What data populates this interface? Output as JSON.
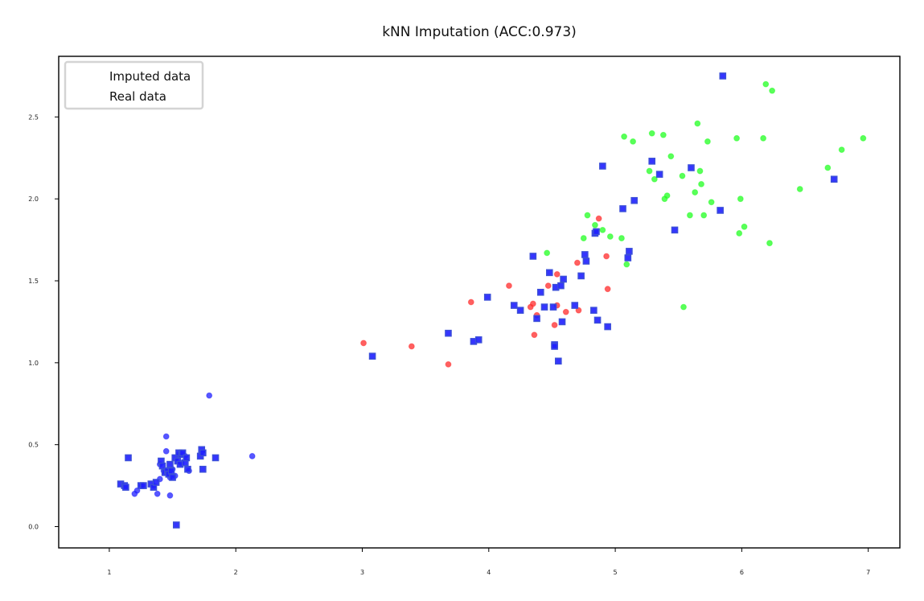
{
  "chart_data": {
    "type": "scatter",
    "title": "kNN Imputation (ACC:0.973)",
    "xlabel": "",
    "ylabel": "",
    "xlim": [
      0.6,
      7.25
    ],
    "ylim": [
      -0.13,
      2.87
    ],
    "xticks": [
      1,
      2,
      3,
      4,
      5,
      6,
      7
    ],
    "yticks": [
      0.0,
      0.5,
      1.0,
      1.5,
      2.0,
      2.5
    ],
    "xtick_labels": [
      "1",
      "2",
      "3",
      "4",
      "5",
      "6",
      "7"
    ],
    "ytick_labels": [
      "0.0",
      "0.5",
      "1.0",
      "1.5",
      "2.0",
      "2.5"
    ],
    "grid": false,
    "legend": {
      "placement": "top-left",
      "entries": [
        "Imputed data",
        "Real data"
      ]
    },
    "colors": {
      "class_0": "#1f1fff",
      "class_1": "#ff2b2b",
      "class_2": "#22ff22",
      "imputed_marker": "#3b4fd8"
    },
    "series": [
      {
        "name": "Real data",
        "marker": "circle",
        "points": [
          {
            "x": 1.45,
            "y": 0.55,
            "c": 0
          },
          {
            "x": 1.79,
            "y": 0.8,
            "c": 0
          },
          {
            "x": 2.13,
            "y": 0.43,
            "c": 0
          },
          {
            "x": 1.45,
            "y": 0.46,
            "c": 0
          },
          {
            "x": 1.4,
            "y": 0.38,
            "c": 0
          },
          {
            "x": 1.5,
            "y": 0.35,
            "c": 0
          },
          {
            "x": 1.55,
            "y": 0.44,
            "c": 0
          },
          {
            "x": 1.6,
            "y": 0.43,
            "c": 0
          },
          {
            "x": 1.63,
            "y": 0.34,
            "c": 0
          },
          {
            "x": 1.48,
            "y": 0.3,
            "c": 0
          },
          {
            "x": 1.52,
            "y": 0.31,
            "c": 0
          },
          {
            "x": 1.38,
            "y": 0.2,
            "c": 0
          },
          {
            "x": 1.48,
            "y": 0.19,
            "c": 0
          },
          {
            "x": 1.2,
            "y": 0.2,
            "c": 0
          },
          {
            "x": 1.22,
            "y": 0.22,
            "c": 0
          },
          {
            "x": 1.26,
            "y": 0.25,
            "c": 0
          },
          {
            "x": 1.35,
            "y": 0.25,
            "c": 0
          },
          {
            "x": 1.4,
            "y": 0.29,
            "c": 0
          },
          {
            "x": 1.57,
            "y": 0.39,
            "c": 0
          },
          {
            "x": 1.43,
            "y": 0.34,
            "c": 0
          },
          {
            "x": 3.01,
            "y": 1.12,
            "c": 1
          },
          {
            "x": 3.39,
            "y": 1.1,
            "c": 1
          },
          {
            "x": 3.68,
            "y": 0.99,
            "c": 1
          },
          {
            "x": 3.86,
            "y": 1.37,
            "c": 1
          },
          {
            "x": 4.16,
            "y": 1.47,
            "c": 1
          },
          {
            "x": 4.33,
            "y": 1.34,
            "c": 1
          },
          {
            "x": 4.35,
            "y": 1.36,
            "c": 1
          },
          {
            "x": 4.36,
            "y": 1.17,
            "c": 1
          },
          {
            "x": 4.38,
            "y": 1.29,
            "c": 1
          },
          {
            "x": 4.47,
            "y": 1.47,
            "c": 1
          },
          {
            "x": 4.52,
            "y": 1.23,
            "c": 1
          },
          {
            "x": 4.54,
            "y": 1.35,
            "c": 1
          },
          {
            "x": 4.54,
            "y": 1.54,
            "c": 1
          },
          {
            "x": 4.61,
            "y": 1.31,
            "c": 1
          },
          {
            "x": 4.7,
            "y": 1.61,
            "c": 1
          },
          {
            "x": 4.71,
            "y": 1.32,
            "c": 1
          },
          {
            "x": 4.87,
            "y": 1.88,
            "c": 1
          },
          {
            "x": 4.93,
            "y": 1.65,
            "c": 1
          },
          {
            "x": 4.94,
            "y": 1.45,
            "c": 1
          },
          {
            "x": 4.46,
            "y": 1.67,
            "c": 2
          },
          {
            "x": 4.75,
            "y": 1.76,
            "c": 2
          },
          {
            "x": 4.78,
            "y": 1.9,
            "c": 2
          },
          {
            "x": 4.84,
            "y": 1.84,
            "c": 2
          },
          {
            "x": 4.9,
            "y": 1.81,
            "c": 2
          },
          {
            "x": 4.96,
            "y": 1.77,
            "c": 2
          },
          {
            "x": 5.05,
            "y": 1.76,
            "c": 2
          },
          {
            "x": 5.07,
            "y": 2.38,
            "c": 2
          },
          {
            "x": 5.09,
            "y": 1.6,
            "c": 2
          },
          {
            "x": 5.14,
            "y": 2.35,
            "c": 2
          },
          {
            "x": 5.27,
            "y": 2.17,
            "c": 2
          },
          {
            "x": 5.29,
            "y": 2.4,
            "c": 2
          },
          {
            "x": 5.31,
            "y": 2.12,
            "c": 2
          },
          {
            "x": 5.38,
            "y": 2.39,
            "c": 2
          },
          {
            "x": 5.39,
            "y": 2.0,
            "c": 2
          },
          {
            "x": 5.41,
            "y": 2.02,
            "c": 2
          },
          {
            "x": 5.44,
            "y": 2.26,
            "c": 2
          },
          {
            "x": 5.53,
            "y": 2.14,
            "c": 2
          },
          {
            "x": 5.54,
            "y": 1.34,
            "c": 2
          },
          {
            "x": 5.59,
            "y": 1.9,
            "c": 2
          },
          {
            "x": 5.63,
            "y": 2.04,
            "c": 2
          },
          {
            "x": 5.65,
            "y": 2.46,
            "c": 2
          },
          {
            "x": 5.67,
            "y": 2.17,
            "c": 2
          },
          {
            "x": 5.68,
            "y": 2.09,
            "c": 2
          },
          {
            "x": 5.7,
            "y": 1.9,
            "c": 2
          },
          {
            "x": 5.73,
            "y": 2.35,
            "c": 2
          },
          {
            "x": 5.76,
            "y": 1.98,
            "c": 2
          },
          {
            "x": 5.96,
            "y": 2.37,
            "c": 2
          },
          {
            "x": 5.98,
            "y": 1.79,
            "c": 2
          },
          {
            "x": 5.99,
            "y": 2.0,
            "c": 2
          },
          {
            "x": 6.02,
            "y": 1.83,
            "c": 2
          },
          {
            "x": 6.17,
            "y": 2.37,
            "c": 2
          },
          {
            "x": 6.19,
            "y": 2.7,
            "c": 2
          },
          {
            "x": 6.22,
            "y": 1.73,
            "c": 2
          },
          {
            "x": 6.24,
            "y": 2.66,
            "c": 2
          },
          {
            "x": 6.46,
            "y": 2.06,
            "c": 2
          },
          {
            "x": 6.68,
            "y": 2.19,
            "c": 2
          },
          {
            "x": 6.79,
            "y": 2.3,
            "c": 2
          },
          {
            "x": 6.96,
            "y": 2.37,
            "c": 2
          }
        ]
      },
      {
        "name": "Imputed data",
        "marker": "square",
        "points": [
          {
            "x": 1.09,
            "y": 0.26,
            "c": 0
          },
          {
            "x": 1.12,
            "y": 0.25,
            "c": 0
          },
          {
            "x": 1.13,
            "y": 0.24,
            "c": 0
          },
          {
            "x": 1.15,
            "y": 0.42,
            "c": 0
          },
          {
            "x": 1.25,
            "y": 0.25,
            "c": 0
          },
          {
            "x": 1.27,
            "y": 0.25,
            "c": 0
          },
          {
            "x": 1.33,
            "y": 0.26,
            "c": 0
          },
          {
            "x": 1.35,
            "y": 0.24,
            "c": 0
          },
          {
            "x": 1.37,
            "y": 0.27,
            "c": 0
          },
          {
            "x": 1.41,
            "y": 0.4,
            "c": 0
          },
          {
            "x": 1.42,
            "y": 0.37,
            "c": 0
          },
          {
            "x": 1.44,
            "y": 0.33,
            "c": 0
          },
          {
            "x": 1.46,
            "y": 0.34,
            "c": 0
          },
          {
            "x": 1.47,
            "y": 0.32,
            "c": 0
          },
          {
            "x": 1.48,
            "y": 0.38,
            "c": 0
          },
          {
            "x": 1.49,
            "y": 0.34,
            "c": 0
          },
          {
            "x": 1.5,
            "y": 0.3,
            "c": 0
          },
          {
            "x": 1.52,
            "y": 0.42,
            "c": 0
          },
          {
            "x": 1.53,
            "y": 0.01,
            "c": 0
          },
          {
            "x": 1.54,
            "y": 0.4,
            "c": 0
          },
          {
            "x": 1.55,
            "y": 0.45,
            "c": 0
          },
          {
            "x": 1.56,
            "y": 0.38,
            "c": 0
          },
          {
            "x": 1.57,
            "y": 0.44,
            "c": 0
          },
          {
            "x": 1.58,
            "y": 0.45,
            "c": 0
          },
          {
            "x": 1.6,
            "y": 0.39,
            "c": 0
          },
          {
            "x": 1.61,
            "y": 0.42,
            "c": 0
          },
          {
            "x": 1.62,
            "y": 0.35,
            "c": 0
          },
          {
            "x": 1.72,
            "y": 0.43,
            "c": 0
          },
          {
            "x": 1.73,
            "y": 0.47,
            "c": 0
          },
          {
            "x": 1.74,
            "y": 0.45,
            "c": 0
          },
          {
            "x": 1.74,
            "y": 0.35,
            "c": 0
          },
          {
            "x": 1.84,
            "y": 0.42,
            "c": 0
          },
          {
            "x": 3.08,
            "y": 1.04,
            "c": 0
          },
          {
            "x": 3.68,
            "y": 1.18,
            "c": 0
          },
          {
            "x": 3.88,
            "y": 1.13,
            "c": 0
          },
          {
            "x": 3.92,
            "y": 1.14,
            "c": 0
          },
          {
            "x": 3.99,
            "y": 1.4,
            "c": 0
          },
          {
            "x": 4.2,
            "y": 1.35,
            "c": 0
          },
          {
            "x": 4.25,
            "y": 1.32,
            "c": 0
          },
          {
            "x": 4.35,
            "y": 1.65,
            "c": 0
          },
          {
            "x": 4.38,
            "y": 1.27,
            "c": 0
          },
          {
            "x": 4.41,
            "y": 1.43,
            "c": 0
          },
          {
            "x": 4.44,
            "y": 1.34,
            "c": 0
          },
          {
            "x": 4.48,
            "y": 1.55,
            "c": 0
          },
          {
            "x": 4.51,
            "y": 1.34,
            "c": 0
          },
          {
            "x": 4.52,
            "y": 1.11,
            "c": 0
          },
          {
            "x": 4.52,
            "y": 1.1,
            "c": 0
          },
          {
            "x": 4.53,
            "y": 1.46,
            "c": 0
          },
          {
            "x": 4.55,
            "y": 1.01,
            "c": 0
          },
          {
            "x": 4.57,
            "y": 1.47,
            "c": 0
          },
          {
            "x": 4.58,
            "y": 1.25,
            "c": 0
          },
          {
            "x": 4.59,
            "y": 1.51,
            "c": 0
          },
          {
            "x": 4.68,
            "y": 1.35,
            "c": 0
          },
          {
            "x": 4.73,
            "y": 1.53,
            "c": 0
          },
          {
            "x": 4.76,
            "y": 1.66,
            "c": 0
          },
          {
            "x": 4.77,
            "y": 1.62,
            "c": 0
          },
          {
            "x": 4.83,
            "y": 1.32,
            "c": 0
          },
          {
            "x": 4.84,
            "y": 1.79,
            "c": 0
          },
          {
            "x": 4.85,
            "y": 1.8,
            "c": 0
          },
          {
            "x": 4.86,
            "y": 1.26,
            "c": 0
          },
          {
            "x": 4.9,
            "y": 2.2,
            "c": 0
          },
          {
            "x": 4.94,
            "y": 1.22,
            "c": 0
          },
          {
            "x": 5.06,
            "y": 1.94,
            "c": 0
          },
          {
            "x": 5.1,
            "y": 1.64,
            "c": 0
          },
          {
            "x": 5.11,
            "y": 1.68,
            "c": 0
          },
          {
            "x": 5.15,
            "y": 1.99,
            "c": 0
          },
          {
            "x": 5.29,
            "y": 2.23,
            "c": 0
          },
          {
            "x": 5.35,
            "y": 2.15,
            "c": 0
          },
          {
            "x": 5.47,
            "y": 1.81,
            "c": 0
          },
          {
            "x": 5.6,
            "y": 2.19,
            "c": 0
          },
          {
            "x": 5.83,
            "y": 1.93,
            "c": 0
          },
          {
            "x": 5.85,
            "y": 2.75,
            "c": 0
          },
          {
            "x": 6.73,
            "y": 2.12,
            "c": 0
          }
        ]
      }
    ]
  }
}
